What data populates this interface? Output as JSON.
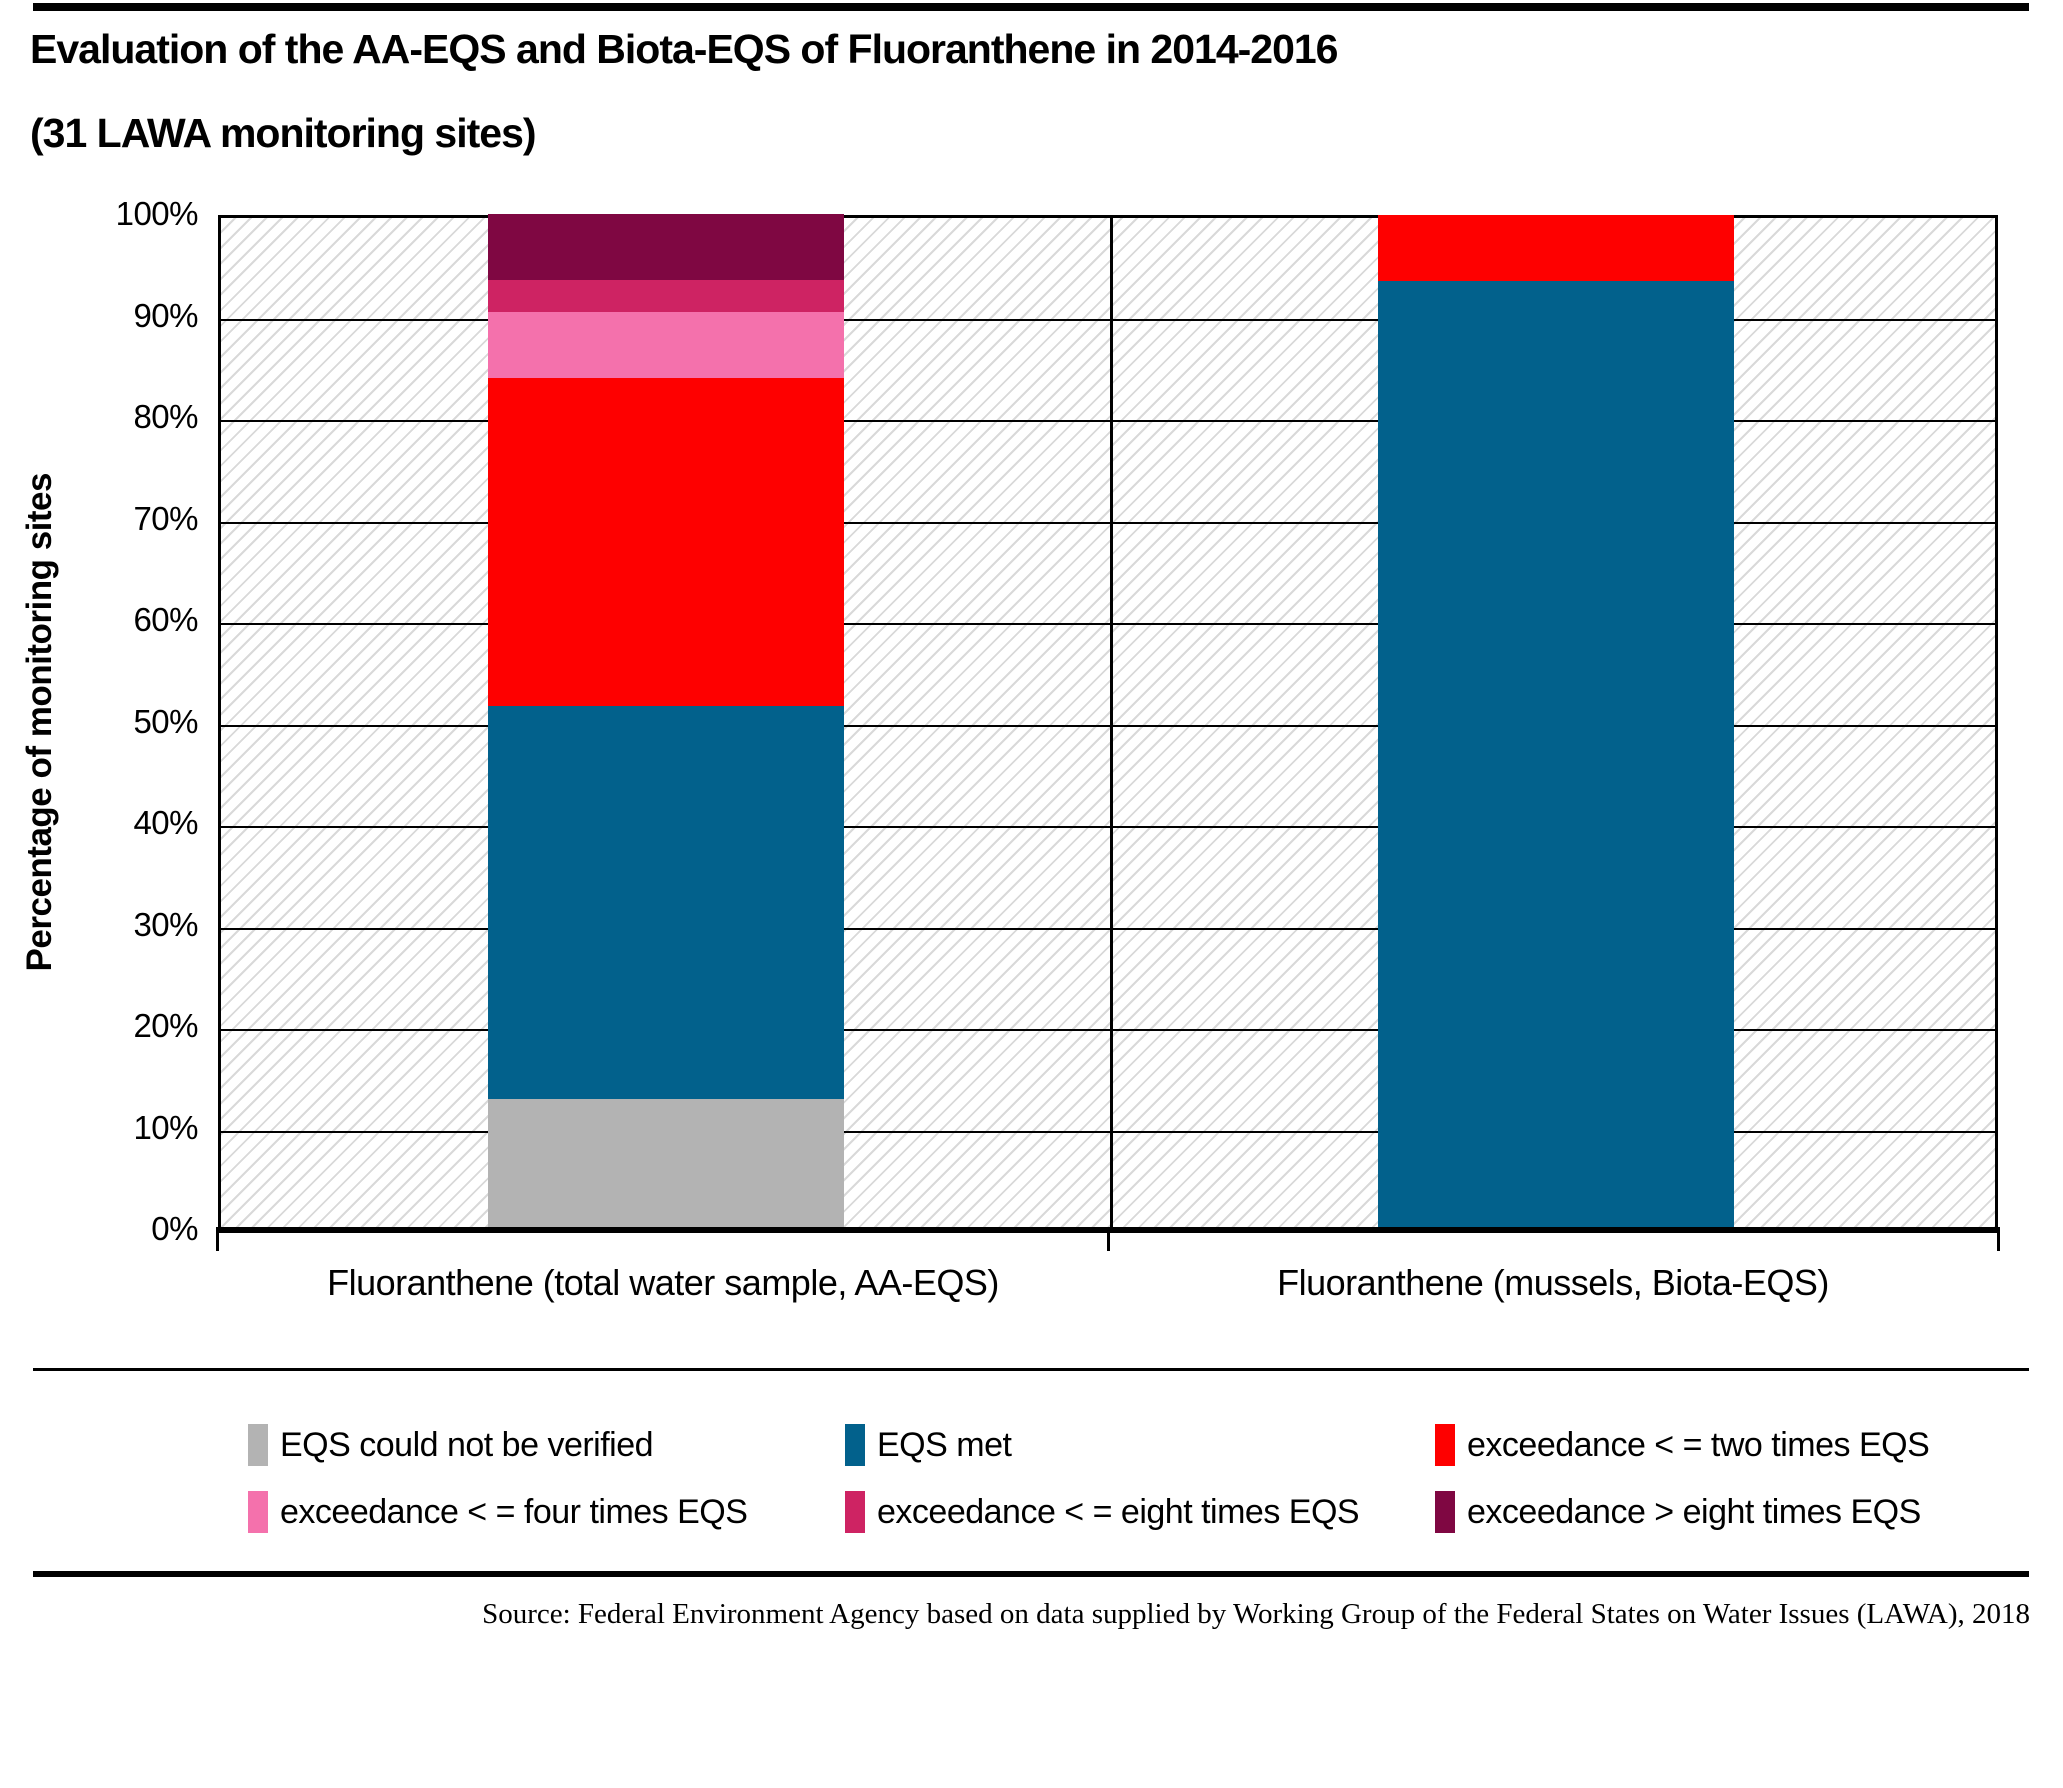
{
  "title_line1": "Evaluation of the AA-EQS and Biota-EQS of Fluoranthene in 2014-2016",
  "title_line2": "(31 LAWA monitoring sites)",
  "source": "Source: Federal Environment Agency based on data supplied by Working Group of the Federal States on Water Issues (LAWA), 2018",
  "colors": {
    "grid": "#000000",
    "hatch_line": "#d9d9d9",
    "axis": "#000000"
  },
  "chart_data": {
    "type": "bar",
    "stacked": true,
    "title": "Evaluation of the AA-EQS and Biota-EQS of Fluoranthene in 2014-2016 (31 LAWA monitoring sites)",
    "categories": [
      "Fluoranthene (total water sample, AA-EQS)",
      "Fluoranthene (mussels, Biota-EQS)"
    ],
    "series": [
      {
        "name": "EQS could not be verified",
        "color": "#b3b3b3",
        "values": [
          12.9,
          0
        ]
      },
      {
        "name": "EQS met",
        "color": "#02618c",
        "values": [
          38.7,
          93.5
        ]
      },
      {
        "name": "exceedance < = two times EQS",
        "color": "#fe0000",
        "values": [
          32.3,
          6.5
        ]
      },
      {
        "name": "exceedance < = four times EQS",
        "color": "#f471ac",
        "values": [
          6.5,
          0
        ]
      },
      {
        "name": "exceedance < = eight times EQS",
        "color": "#ce2363",
        "values": [
          3.2,
          0
        ]
      },
      {
        "name": "exceedance > eight times EQS",
        "color": "#7f0742",
        "values": [
          6.5,
          0
        ]
      }
    ],
    "xlabel": "",
    "ylabel": "Percentage of monitoring sites",
    "ylim": [
      0,
      100
    ],
    "ytick_labels": [
      "0%",
      "10%",
      "20%",
      "30%",
      "40%",
      "50%",
      "60%",
      "70%",
      "80%",
      "90%",
      "100%"
    ],
    "grid": "horizontal",
    "background_pattern": "diagonal-hatch",
    "legend_position": "bottom"
  }
}
